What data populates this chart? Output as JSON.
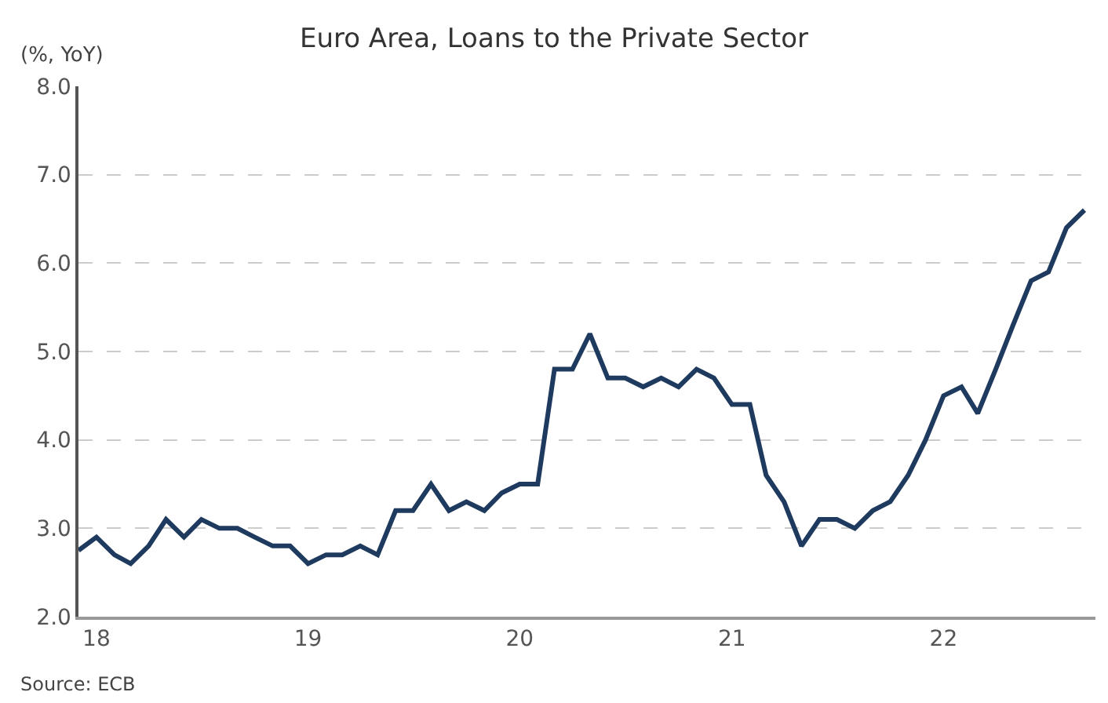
{
  "chart_data": {
    "type": "line",
    "title": "Euro Area, Loans to the Private Sector",
    "ylabel": "(%, YoY)",
    "x": [
      "2017-12",
      "2018-01",
      "2018-02",
      "2018-03",
      "2018-04",
      "2018-05",
      "2018-06",
      "2018-07",
      "2018-08",
      "2018-09",
      "2018-10",
      "2018-11",
      "2018-12",
      "2019-01",
      "2019-02",
      "2019-03",
      "2019-04",
      "2019-05",
      "2019-06",
      "2019-07",
      "2019-08",
      "2019-09",
      "2019-10",
      "2019-11",
      "2019-12",
      "2020-01",
      "2020-02",
      "2020-03",
      "2020-04",
      "2020-05",
      "2020-06",
      "2020-07",
      "2020-08",
      "2020-09",
      "2020-10",
      "2020-11",
      "2020-12",
      "2021-01",
      "2021-02",
      "2021-03",
      "2021-04",
      "2021-05",
      "2021-06",
      "2021-07",
      "2021-08",
      "2021-09",
      "2021-10",
      "2021-11",
      "2021-12",
      "2022-01",
      "2022-02",
      "2022-03",
      "2022-04",
      "2022-05",
      "2022-06",
      "2022-07",
      "2022-08",
      "2022-09"
    ],
    "series": [
      {
        "color": "#1f3a5f",
        "values": [
          2.75,
          2.9,
          2.7,
          2.6,
          2.8,
          3.1,
          2.9,
          3.1,
          3.0,
          3.0,
          2.9,
          2.8,
          2.8,
          2.6,
          2.7,
          2.7,
          2.8,
          2.7,
          3.2,
          3.2,
          3.5,
          3.2,
          3.3,
          3.2,
          3.4,
          3.5,
          3.5,
          4.8,
          4.8,
          5.2,
          4.7,
          4.7,
          4.6,
          4.7,
          4.6,
          4.8,
          4.7,
          4.4,
          4.4,
          3.6,
          3.3,
          2.8,
          3.1,
          3.1,
          3.0,
          3.2,
          3.3,
          3.6,
          4.0,
          4.5,
          4.6,
          4.3,
          4.8,
          5.3,
          5.8,
          5.9,
          6.4,
          6.6
        ]
      }
    ],
    "xlim": [
      "2017-12",
      "2022-09-20"
    ],
    "xticks": [
      {
        "value": "2018-01",
        "label": "18"
      },
      {
        "value": "2019-01",
        "label": "19"
      },
      {
        "value": "2020-01",
        "label": "20"
      },
      {
        "value": "2021-01",
        "label": "21"
      },
      {
        "value": "2022-01",
        "label": "22"
      }
    ],
    "ylim": [
      2.0,
      8.0
    ],
    "yticks": [
      {
        "value": 2,
        "label": "2.0"
      },
      {
        "value": 3,
        "label": "3.0"
      },
      {
        "value": 4,
        "label": "4.0"
      },
      {
        "value": 5,
        "label": "5.0"
      },
      {
        "value": 6,
        "label": "6.0"
      },
      {
        "value": 7,
        "label": "7.0"
      },
      {
        "value": 8,
        "label": "8.0"
      }
    ],
    "grid": "y",
    "marker": "none",
    "line_style": "solid",
    "annotations": [
      "Source: ECB"
    ]
  }
}
